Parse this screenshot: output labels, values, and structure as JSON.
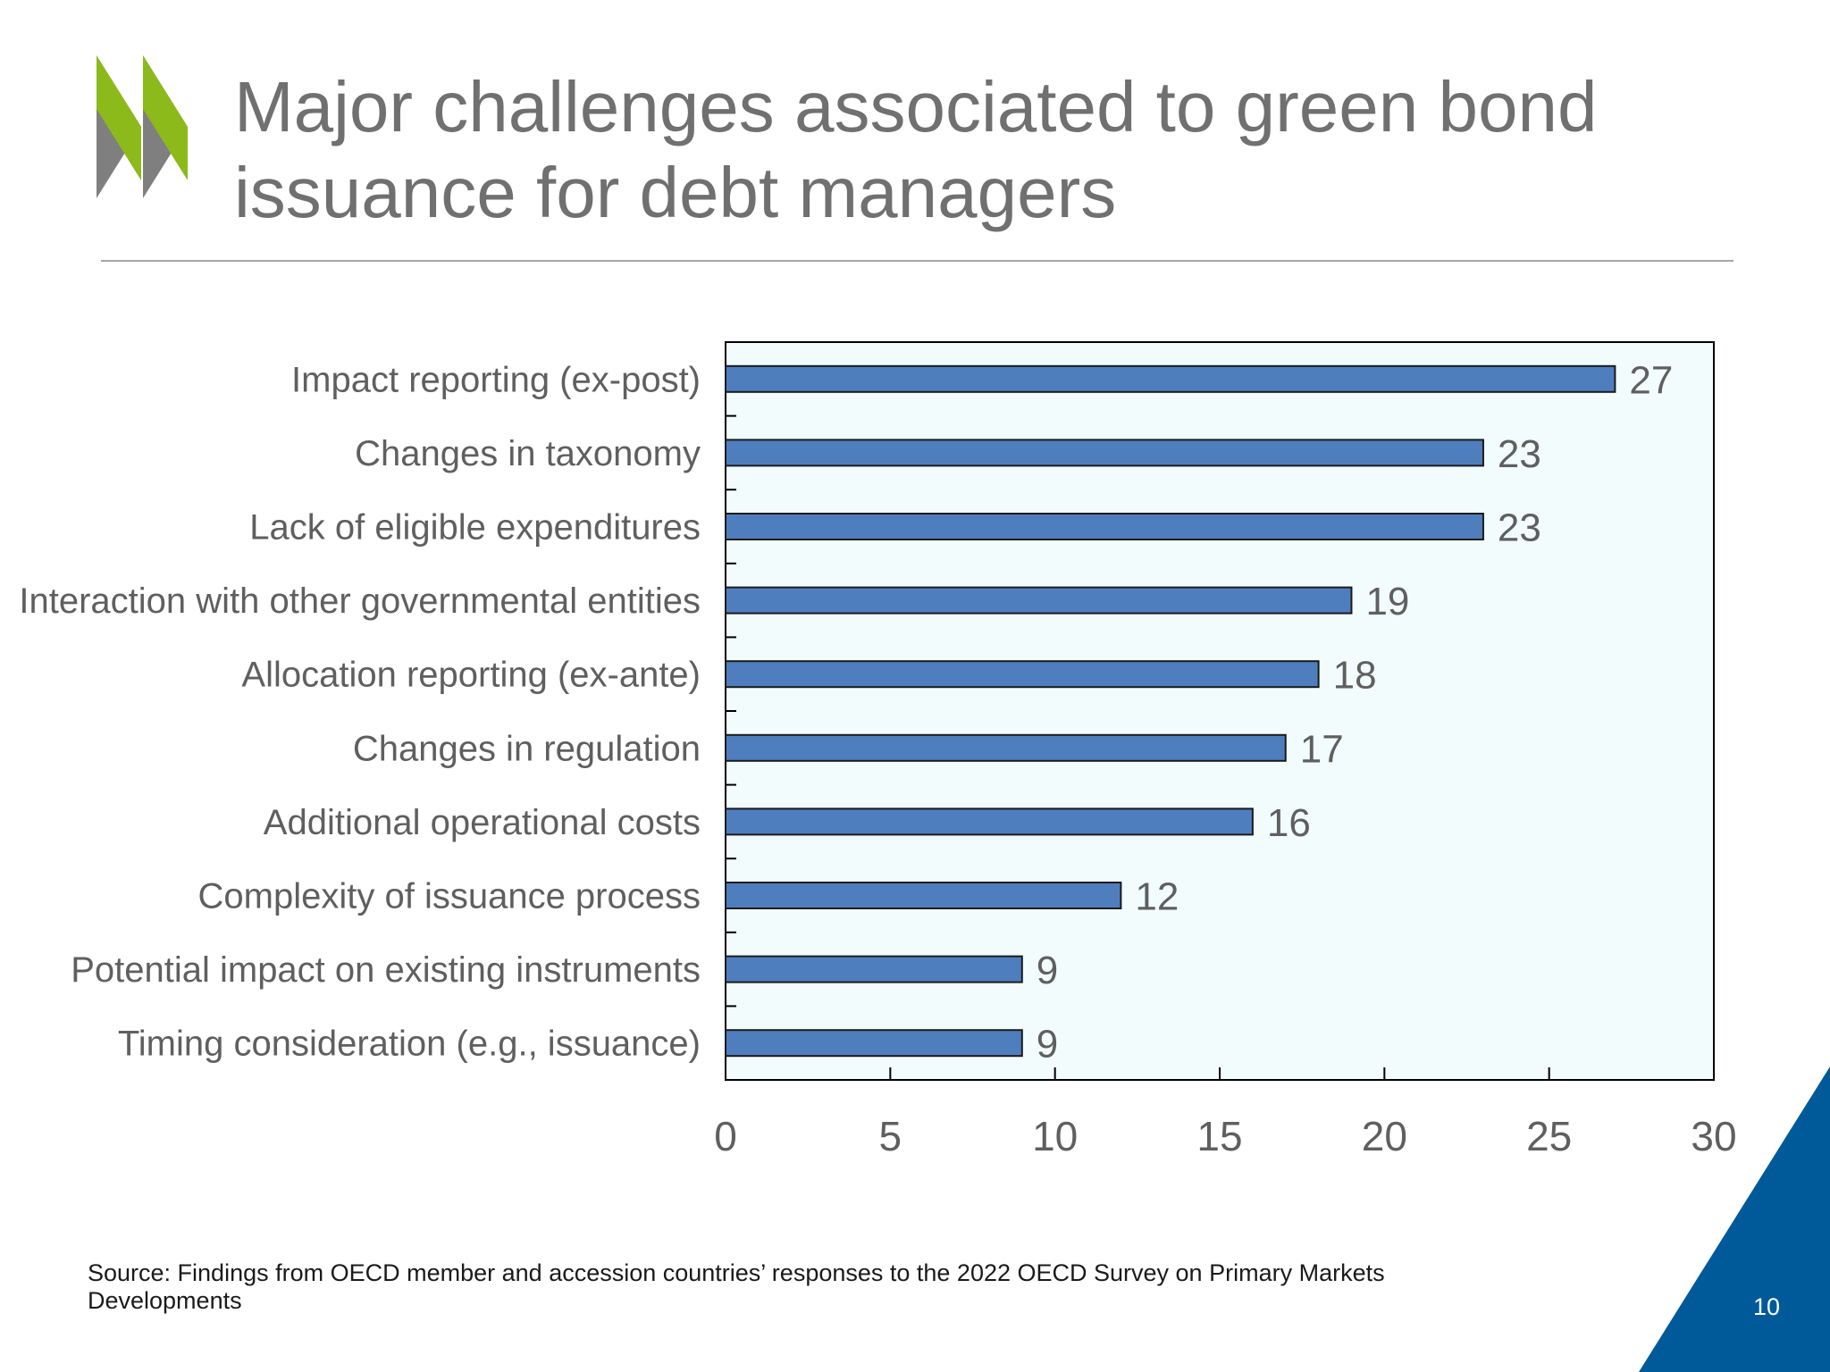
{
  "slide": {
    "title": "Major challenges associated to green bond issuance for debt managers",
    "source": "Source: Findings from OECD member and accession countries’ responses to the 2022 OECD Survey on Primary Markets Developments",
    "page_number": "10"
  },
  "colors": {
    "bar": "#4f7ebf",
    "plot_background": "#f2fcfd",
    "logo_green": "#8cba1a",
    "logo_gray": "#7f7f7f",
    "corner_blue": "#005a9a",
    "text_gray": "#5f5f5f"
  },
  "icons": {
    "logo": "oecd-chevron-logo"
  },
  "chart_data": {
    "type": "bar",
    "orientation": "horizontal",
    "categories": [
      "Impact reporting (ex-post)",
      "Changes in taxonomy",
      "Lack of eligible expenditures",
      "Interaction with other governmental entities",
      "Allocation reporting (ex-ante)",
      "Changes in regulation",
      "Additional operational costs",
      "Complexity of issuance process",
      "Potential impact on existing instruments",
      "Timing consideration (e.g., issuance)"
    ],
    "values": [
      27,
      23,
      23,
      19,
      18,
      17,
      16,
      12,
      9,
      9
    ],
    "xlim": [
      0,
      30
    ],
    "xticks": [
      "0",
      "5",
      "10",
      "15",
      "20",
      "25",
      "30"
    ],
    "data_labels": true,
    "grid": false,
    "legend": "none"
  }
}
